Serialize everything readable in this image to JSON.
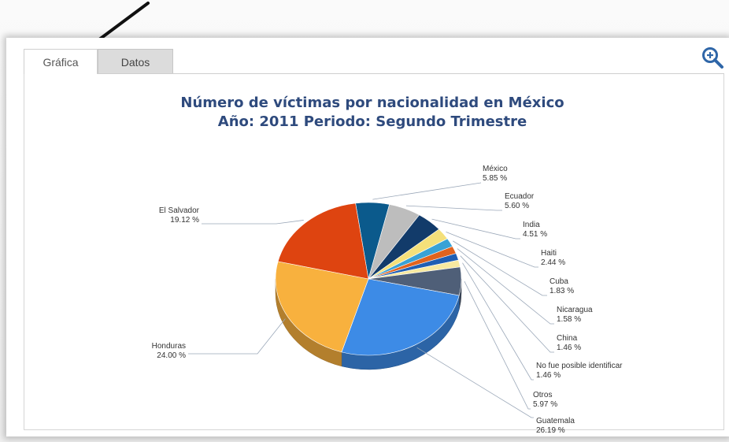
{
  "tabs": [
    {
      "label": "Gráfica",
      "active": true
    },
    {
      "label": "Datos",
      "active": false
    }
  ],
  "toolbar": {
    "zoom_icon": "zoom-in-icon"
  },
  "annotation": {
    "pointer_icon": "arrow-pointer-icon"
  },
  "chart_data": {
    "type": "pie",
    "style": "3d",
    "title": [
      "Número de víctimas por nacionalidad en México",
      "Año: 2011 Periodo: Segundo Trimestre"
    ],
    "unit": "%",
    "slices": [
      {
        "label": "México",
        "value": 5.85,
        "display": "5.85 %",
        "color": "#0b5a8c"
      },
      {
        "label": "Ecuador",
        "value": 5.6,
        "display": "5.60 %",
        "color": "#bdbdbd"
      },
      {
        "label": "India",
        "value": 4.51,
        "display": "4.51 %",
        "color": "#123b6a"
      },
      {
        "label": "Haiti",
        "value": 2.44,
        "display": "2.44 %",
        "color": "#f4e07a"
      },
      {
        "label": "Cuba",
        "value": 1.83,
        "display": "1.83 %",
        "color": "#39a2d6"
      },
      {
        "label": "Nicaragua",
        "value": 1.58,
        "display": "1.58 %",
        "color": "#e0631e"
      },
      {
        "label": "China",
        "value": 1.46,
        "display": "1.46 %",
        "color": "#1f5fb3"
      },
      {
        "label": "No fue posible identificar",
        "value": 1.46,
        "display": "1.46 %",
        "color": "#f7e9a0"
      },
      {
        "label": "Otros",
        "value": 5.97,
        "display": "5.97 %",
        "color": "#4f5f78"
      },
      {
        "label": "Guatemala",
        "value": 26.19,
        "display": "26.19 %",
        "color": "#3d8be6"
      },
      {
        "label": "Honduras",
        "value": 24.0,
        "display": "24.00 %",
        "color": "#f8b13e"
      },
      {
        "label": "El Salvador",
        "value": 19.12,
        "display": "19.12 %",
        "color": "#de4410"
      }
    ]
  }
}
